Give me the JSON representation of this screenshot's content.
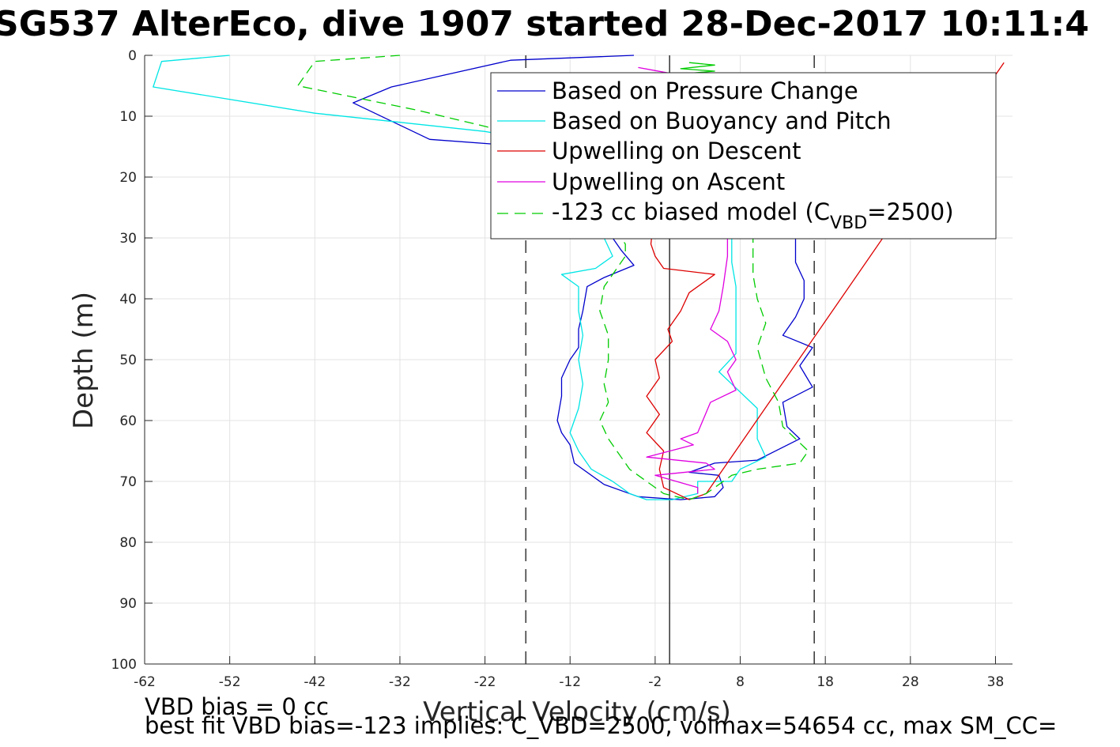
{
  "title": "SG537 AlterEco, dive 1907 started 28-Dec-2017 10:11:4",
  "notes": {
    "vbd_bias": "VBD bias = 0 cc",
    "best_fit": "best fit VBD bias=-123 implies: C_VBD=2500, volmax=54654 cc, max SM_CC="
  },
  "colors": {
    "pressure": "#0000cc",
    "buoyancy": "#00e5e5",
    "descent": "#dd0000",
    "ascent": "#e000e0",
    "model": "#00cc00",
    "reference": "#404040"
  },
  "chart_data": {
    "type": "line",
    "xlabel": "Vertical Velocity (cm/s)",
    "ylabel": "Depth (m)",
    "xlim": [
      -62,
      40
    ],
    "ylim": [
      0,
      100
    ],
    "y_reversed": true,
    "grid": true,
    "xticks": [
      -62,
      -52,
      -42,
      -32,
      -22,
      -12,
      -2,
      8,
      18,
      28,
      38
    ],
    "yticks": [
      0,
      10,
      20,
      30,
      40,
      50,
      60,
      70,
      80,
      90,
      100
    ],
    "legend_position": "top-right",
    "legend": {
      "entries": [
        "Based on Pressure Change",
        "Based on Buoyancy and Pitch",
        "Upwelling on Descent",
        "Upwelling on Ascent"
      ],
      "model_prefix": "-123 cc biased model (C",
      "model_sub": "VBD",
      "model_suffix": "=2500)"
    },
    "reference_lines": [
      {
        "x": -0.3,
        "style": "solid"
      },
      {
        "x": -17.2,
        "style": "dashed"
      },
      {
        "x": 16.7,
        "style": "dashed"
      }
    ],
    "series": [
      {
        "key": "pressure",
        "name": "Based on Pressure Change",
        "style": "solid",
        "points": [
          [
            -4.5,
            0
          ],
          [
            -19,
            0.8
          ],
          [
            -33,
            5.2
          ],
          [
            -37.5,
            7.8
          ],
          [
            -28.5,
            13.8
          ],
          [
            -15,
            15.2
          ],
          [
            -8,
            22
          ],
          [
            -7,
            30
          ],
          [
            -6,
            32
          ],
          [
            -4.5,
            34.5
          ],
          [
            -8,
            36.5
          ],
          [
            -10,
            38
          ],
          [
            -10.5,
            42
          ],
          [
            -11,
            45
          ],
          [
            -11,
            48
          ],
          [
            -12,
            50
          ],
          [
            -13,
            53
          ],
          [
            -13,
            56
          ],
          [
            -13.5,
            60
          ],
          [
            -13,
            62
          ],
          [
            -12,
            64
          ],
          [
            -11.5,
            67
          ],
          [
            -8,
            70.5
          ],
          [
            -4,
            72.5
          ],
          [
            1,
            73
          ],
          [
            5,
            72.5
          ],
          [
            6,
            71
          ],
          [
            5.5,
            69
          ],
          [
            2,
            68.5
          ],
          [
            5,
            67
          ],
          [
            10,
            66.5
          ],
          [
            15,
            63
          ],
          [
            13.5,
            61
          ],
          [
            13,
            57
          ],
          [
            16.5,
            54.5
          ],
          [
            15,
            51
          ],
          [
            16.5,
            48
          ],
          [
            13,
            46
          ],
          [
            14.5,
            43
          ],
          [
            15.5,
            40
          ],
          [
            15.5,
            37
          ],
          [
            14.5,
            34
          ],
          [
            14.5,
            30
          ],
          [
            14,
            25
          ],
          [
            12.5,
            20
          ],
          [
            10,
            15
          ],
          [
            4,
            12
          ],
          [
            0,
            9
          ]
        ]
      },
      {
        "key": "buoyancy",
        "name": "Based on Buoyancy and Pitch",
        "style": "solid",
        "points": [
          [
            -52,
            0
          ],
          [
            -60,
            1
          ],
          [
            -61,
            5.2
          ],
          [
            -42,
            9.5
          ],
          [
            -32,
            11
          ],
          [
            -22,
            12.5
          ],
          [
            -16,
            14
          ],
          [
            -10,
            20
          ],
          [
            -9,
            27
          ],
          [
            -8,
            30
          ],
          [
            -7,
            33
          ],
          [
            -9,
            35
          ],
          [
            -13,
            36
          ],
          [
            -11,
            38
          ],
          [
            -11,
            42
          ],
          [
            -10.5,
            46
          ],
          [
            -11,
            50
          ],
          [
            -10.5,
            54
          ],
          [
            -11,
            58
          ],
          [
            -12,
            62
          ],
          [
            -11,
            65
          ],
          [
            -9.5,
            68
          ],
          [
            -7,
            70
          ],
          [
            -5,
            72
          ],
          [
            -3,
            73
          ],
          [
            0,
            73
          ],
          [
            3,
            72
          ],
          [
            3,
            70
          ],
          [
            7,
            70
          ],
          [
            8,
            68
          ],
          [
            11,
            66
          ],
          [
            10,
            63
          ],
          [
            10,
            58
          ],
          [
            7,
            54
          ],
          [
            5.5,
            52
          ],
          [
            7.5,
            49
          ],
          [
            7.5,
            44
          ],
          [
            7.5,
            38
          ],
          [
            7,
            34
          ],
          [
            7,
            30
          ],
          [
            6,
            25
          ],
          [
            4,
            20
          ],
          [
            1,
            13
          ],
          [
            -1,
            8
          ],
          [
            -2,
            4
          ]
        ]
      },
      {
        "key": "descent",
        "name": "Upwelling on Descent",
        "style": "solid",
        "points": [
          [
            -2,
            3
          ],
          [
            1,
            15
          ],
          [
            -2,
            25
          ],
          [
            -2.5,
            31
          ],
          [
            -2,
            33
          ],
          [
            -1,
            35
          ],
          [
            5,
            36
          ],
          [
            2,
            39
          ],
          [
            1,
            42
          ],
          [
            -0.5,
            45
          ],
          [
            0,
            47
          ],
          [
            -2,
            50
          ],
          [
            -1.5,
            53
          ],
          [
            -3,
            56
          ],
          [
            -1.5,
            59
          ],
          [
            -3,
            62
          ],
          [
            -1,
            65
          ],
          [
            -1.5,
            68
          ],
          [
            -1,
            71
          ],
          [
            2,
            73
          ],
          [
            4,
            72
          ],
          [
            39,
            1.2
          ]
        ]
      },
      {
        "key": "ascent",
        "name": "Upwelling on Ascent",
        "style": "solid",
        "points": [
          [
            -4,
            2
          ],
          [
            -2,
            2.5
          ],
          [
            0,
            3
          ],
          [
            4,
            15
          ],
          [
            6.5,
            30
          ],
          [
            6.5,
            33
          ],
          [
            6,
            38
          ],
          [
            5.5,
            42
          ],
          [
            4.5,
            45
          ],
          [
            6.5,
            47
          ],
          [
            7.5,
            50
          ],
          [
            6.5,
            52
          ],
          [
            7.5,
            55
          ],
          [
            4.5,
            57
          ],
          [
            3,
            62
          ],
          [
            1,
            63
          ],
          [
            2.5,
            64
          ],
          [
            -3,
            66
          ],
          [
            4,
            67
          ],
          [
            5,
            68
          ],
          [
            -2,
            69
          ],
          [
            3,
            71
          ],
          [
            3,
            72
          ]
        ]
      },
      {
        "key": "model",
        "name": "-123 cc biased model (C_VBD=2500)",
        "style": "dashed",
        "points": [
          [
            -32,
            0
          ],
          [
            -42,
            1
          ],
          [
            -44,
            5
          ],
          [
            -30,
            9
          ],
          [
            -18,
            13
          ],
          [
            -12,
            18
          ],
          [
            -9,
            23
          ],
          [
            -7,
            28
          ],
          [
            -5.5,
            31
          ],
          [
            -5.5,
            33
          ],
          [
            -7,
            36
          ],
          [
            -8,
            38
          ],
          [
            -8.5,
            42
          ],
          [
            -7.5,
            46
          ],
          [
            -7.5,
            50
          ],
          [
            -8,
            54
          ],
          [
            -7.5,
            57
          ],
          [
            -8.5,
            60
          ],
          [
            -7.5,
            63
          ],
          [
            -6.5,
            65
          ],
          [
            -5,
            68
          ],
          [
            -3,
            70
          ],
          [
            -1,
            72
          ],
          [
            2,
            73
          ],
          [
            4,
            72
          ],
          [
            7,
            69
          ],
          [
            10,
            68
          ],
          [
            15,
            67
          ],
          [
            16,
            65
          ],
          [
            13,
            61
          ],
          [
            12.5,
            57
          ],
          [
            11,
            53
          ],
          [
            10,
            48
          ],
          [
            11,
            44
          ],
          [
            10,
            40
          ],
          [
            9.5,
            36
          ],
          [
            9.5,
            30
          ],
          [
            9,
            25
          ],
          [
            7,
            20
          ],
          [
            3,
            12
          ],
          [
            0,
            6
          ]
        ]
      },
      {
        "key": "model",
        "name": "-123 cc biased model (C_VBD=2500)",
        "style": "solid",
        "points": [
          [
            2,
            1.2
          ],
          [
            5,
            1.6
          ],
          [
            1,
            2.2
          ],
          [
            5,
            2.6
          ],
          [
            1.5,
            3
          ]
        ]
      }
    ]
  }
}
